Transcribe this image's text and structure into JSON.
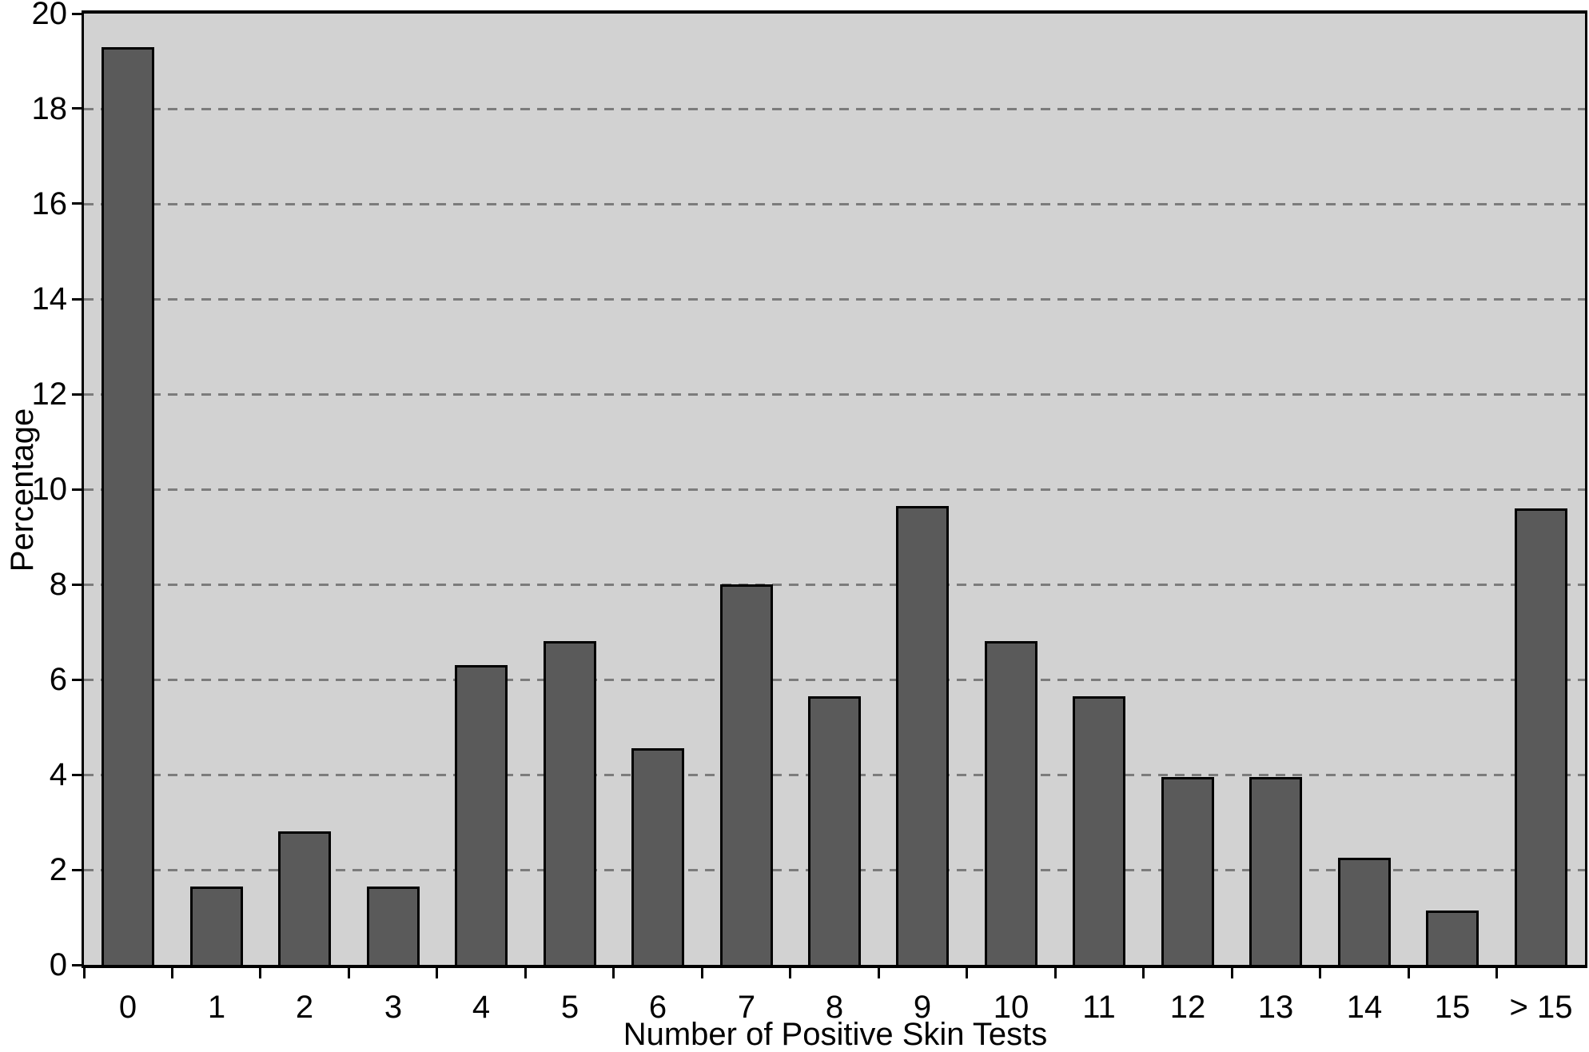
{
  "chart_data": {
    "type": "bar",
    "title": "",
    "xlabel": "Number of Positive Skin Tests",
    "ylabel": "Percentage",
    "categories": [
      "0",
      "1",
      "2",
      "3",
      "4",
      "5",
      "6",
      "7",
      "8",
      "9",
      "10",
      "11",
      "12",
      "13",
      "14",
      "15",
      "> 15"
    ],
    "values": [
      19.3,
      1.65,
      2.8,
      1.65,
      6.3,
      6.8,
      4.55,
      8.0,
      5.65,
      9.65,
      6.8,
      5.65,
      3.95,
      3.95,
      2.25,
      1.15,
      9.6
    ],
    "ylim": [
      0,
      20
    ],
    "yticks": [
      0,
      2,
      4,
      6,
      8,
      10,
      12,
      14,
      16,
      18,
      20
    ],
    "grid": "horizontal-dashed",
    "legend": "none",
    "colors": {
      "bar_fill": "#5a5a5a",
      "bar_border": "#000000",
      "plot_background": "#d2d2d2",
      "gridline": "#7c7c7c",
      "axis": "#000000",
      "page_background": "#ffffff",
      "text": "#000000"
    }
  }
}
